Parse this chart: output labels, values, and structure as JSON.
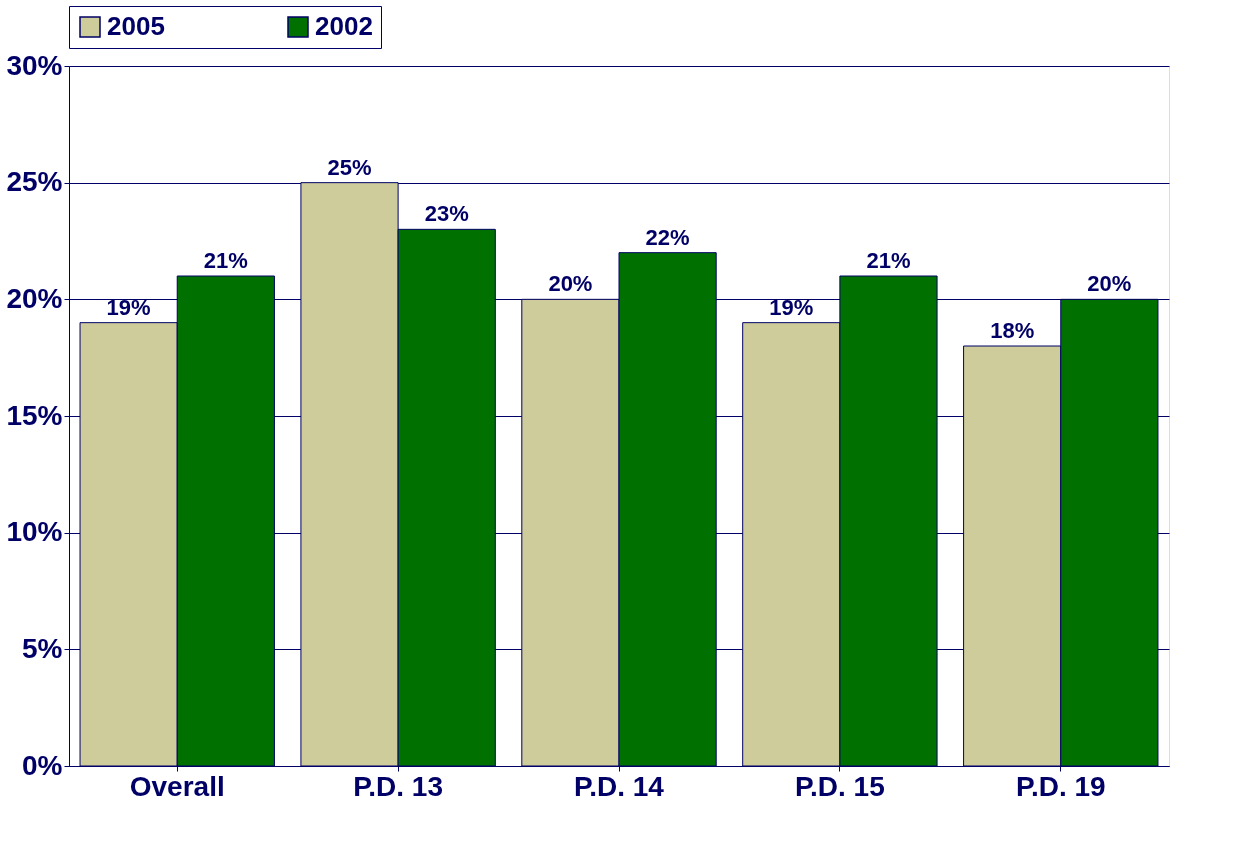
{
  "chart_data": {
    "type": "bar",
    "categories": [
      "Overall",
      "P.D. 13",
      "P.D. 14",
      "P.D. 15",
      "P.D. 19"
    ],
    "series": [
      {
        "name": "2005",
        "color": "#cfcc9c",
        "values": [
          19,
          25,
          20,
          19,
          18
        ]
      },
      {
        "name": "2002",
        "color": "#007000",
        "values": [
          21,
          23,
          22,
          21,
          20
        ]
      }
    ],
    "ylim": [
      0,
      30
    ],
    "yticks": [
      {
        "value": 0,
        "label": "0%"
      },
      {
        "value": 5,
        "label": "5%"
      },
      {
        "value": 10,
        "label": "10%"
      },
      {
        "value": 15,
        "label": "15%"
      },
      {
        "value": 20,
        "label": "20%"
      },
      {
        "value": 25,
        "label": "25%"
      },
      {
        "value": 30,
        "label": "30%"
      }
    ],
    "value_labels": [
      [
        "19%",
        "25%",
        "20%",
        "19%",
        "18%"
      ],
      [
        "21%",
        "23%",
        "22%",
        "21%",
        "20%"
      ]
    ],
    "grid": "y",
    "legend": "top"
  }
}
